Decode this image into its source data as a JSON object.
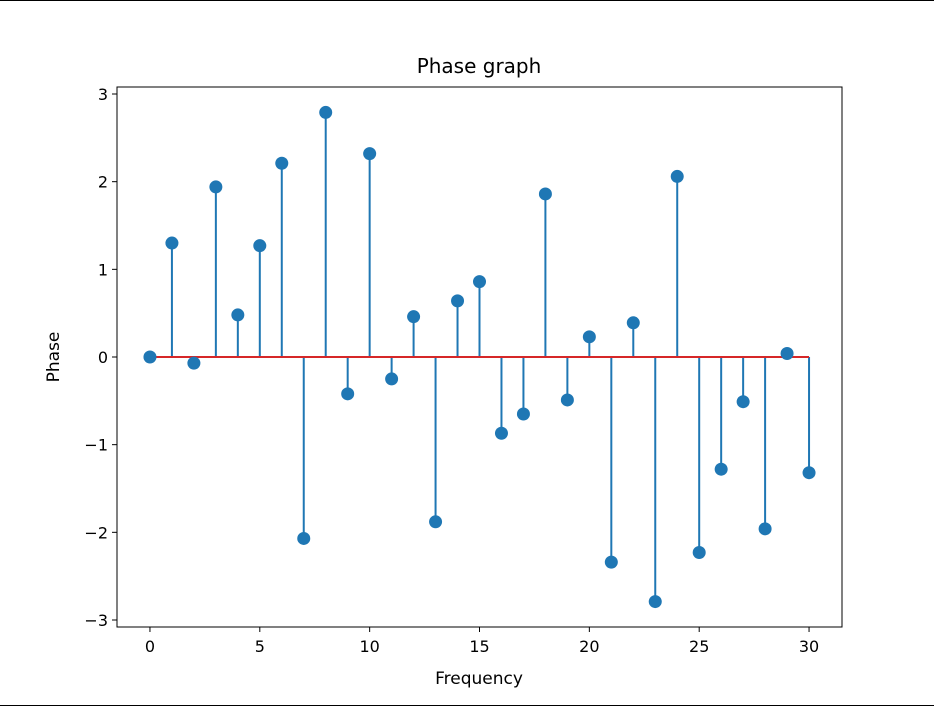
{
  "chart_data": {
    "type": "stem",
    "title": "Phase graph",
    "xlabel": "Frequency",
    "ylabel": "Phase",
    "x": [
      0,
      1,
      2,
      3,
      4,
      5,
      6,
      7,
      8,
      9,
      10,
      11,
      12,
      13,
      14,
      15,
      16,
      17,
      18,
      19,
      20,
      21,
      22,
      23,
      24,
      25,
      26,
      27,
      28,
      29,
      30
    ],
    "values": [
      0.0,
      1.3,
      -0.07,
      1.94,
      0.48,
      1.27,
      2.21,
      -2.07,
      2.79,
      -0.42,
      2.32,
      -0.25,
      0.46,
      -1.88,
      0.64,
      0.86,
      -0.87,
      -0.65,
      1.86,
      -0.49,
      0.23,
      -2.34,
      0.39,
      -2.79,
      2.06,
      -2.23,
      -1.28,
      -0.51,
      -1.96,
      0.04,
      -1.32
    ],
    "xticks": [
      0,
      5,
      10,
      15,
      20,
      25,
      30
    ],
    "xtick_labels": [
      "0",
      "5",
      "10",
      "15",
      "20",
      "25",
      "30"
    ],
    "yticks": [
      -3,
      -2,
      -1,
      0,
      1,
      2,
      3
    ],
    "ytick_labels": [
      "−3",
      "−2",
      "−1",
      "0",
      "1",
      "2",
      "3"
    ],
    "xlim": [
      -1.5,
      31.5
    ],
    "ylim": [
      -3.08,
      3.08
    ],
    "grid": false,
    "colors": {
      "stem": "#1f77b4",
      "marker": "#1f77b4",
      "baseline": "#d62728",
      "axes": "#000000"
    }
  }
}
